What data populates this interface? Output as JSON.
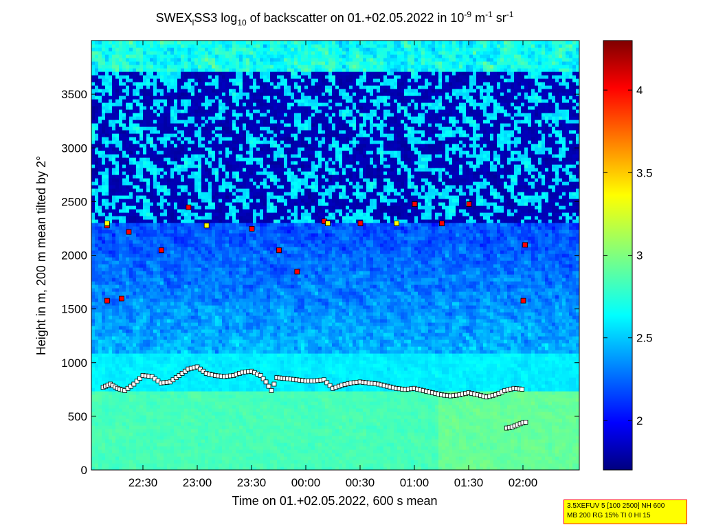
{
  "title": {
    "main": "SWEX",
    "sub1": "l",
    "part2": "SS3 log",
    "sub2": "10",
    "part3": " of backscatter on 01.+02.05.2022 in 10",
    "sup1": "-9",
    "part4": " m",
    "sup2": "-1",
    "part5": " sr",
    "sup3": "-1"
  },
  "info_box": {
    "line1": "3.5XEFUV 5 [100 2500] NH 600",
    "line2": "MB 200 RG 15% TI 0 HI 15"
  },
  "chart_data": {
    "type": "heatmap",
    "xlabel": "Time on 01.+02.05.2022, 600 s mean",
    "ylabel": "Height in m, 200 m mean tilted by 2°",
    "x_ticks": [
      "22:30",
      "23:00",
      "23:30",
      "00:00",
      "00:30",
      "01:00",
      "01:30",
      "02:00"
    ],
    "y_ticks": [
      0,
      500,
      1000,
      1500,
      2000,
      2500,
      3000,
      3500
    ],
    "ylim": [
      0,
      4000
    ],
    "colorbar": {
      "ticks": [
        2,
        2.5,
        3,
        3.5,
        4
      ],
      "range": [
        1.7,
        4.3
      ],
      "colormap": "jet"
    },
    "cloud_base_layers": [
      {
        "name": "layer-low",
        "points": [
          [
            "22:08",
            770
          ],
          [
            "22:12",
            800
          ],
          [
            "22:16",
            760
          ],
          [
            "22:20",
            740
          ],
          [
            "22:25",
            800
          ],
          [
            "22:30",
            880
          ],
          [
            "22:35",
            870
          ],
          [
            "22:40",
            810
          ],
          [
            "22:45",
            820
          ],
          [
            "22:50",
            880
          ],
          [
            "22:55",
            940
          ],
          [
            "23:00",
            960
          ],
          [
            "23:05",
            900
          ],
          [
            "23:10",
            880
          ],
          [
            "23:15",
            870
          ],
          [
            "23:20",
            880
          ],
          [
            "23:25",
            910
          ],
          [
            "23:30",
            920
          ],
          [
            "23:35",
            880
          ],
          [
            "23:38",
            820
          ],
          [
            "23:41",
            740
          ],
          [
            "23:44",
            860
          ],
          [
            "23:50",
            850
          ],
          [
            "23:55",
            840
          ],
          [
            "00:00",
            830
          ],
          [
            "00:05",
            830
          ],
          [
            "00:10",
            840
          ],
          [
            "00:15",
            760
          ],
          [
            "00:20",
            790
          ],
          [
            "00:25",
            810
          ],
          [
            "00:30",
            820
          ],
          [
            "00:35",
            810
          ],
          [
            "00:40",
            800
          ],
          [
            "00:45",
            780
          ],
          [
            "00:50",
            760
          ],
          [
            "00:55",
            750
          ],
          [
            "01:00",
            760
          ],
          [
            "01:05",
            740
          ],
          [
            "01:10",
            720
          ],
          [
            "01:15",
            700
          ],
          [
            "01:20",
            690
          ],
          [
            "01:25",
            700
          ],
          [
            "01:30",
            720
          ],
          [
            "01:35",
            700
          ],
          [
            "01:40",
            680
          ],
          [
            "01:45",
            700
          ],
          [
            "01:50",
            740
          ],
          [
            "01:55",
            760
          ],
          [
            "02:01",
            750
          ]
        ]
      },
      {
        "name": "layer-late-low",
        "points": [
          [
            "01:51",
            390
          ],
          [
            "01:54",
            400
          ],
          [
            "01:57",
            420
          ],
          [
            "02:00",
            440
          ],
          [
            "02:03",
            450
          ]
        ]
      }
    ],
    "sample_points": [
      {
        "time": "22:10",
        "height": 1580,
        "level": "red"
      },
      {
        "time": "22:18",
        "height": 1600,
        "level": "red"
      },
      {
        "time": "22:10",
        "height": 2280,
        "level": "red"
      },
      {
        "time": "22:10",
        "height": 2300,
        "level": "yellow"
      },
      {
        "time": "22:22",
        "height": 2220,
        "level": "red"
      },
      {
        "time": "22:40",
        "height": 2050,
        "level": "red"
      },
      {
        "time": "22:55",
        "height": 2450,
        "level": "red"
      },
      {
        "time": "23:05",
        "height": 2280,
        "level": "yellow"
      },
      {
        "time": "23:30",
        "height": 2250,
        "level": "red"
      },
      {
        "time": "23:45",
        "height": 2050,
        "level": "red"
      },
      {
        "time": "23:55",
        "height": 1850,
        "level": "red"
      },
      {
        "time": "00:10",
        "height": 2320,
        "level": "red"
      },
      {
        "time": "00:12",
        "height": 2300,
        "level": "yellow"
      },
      {
        "time": "00:30",
        "height": 2300,
        "level": "red"
      },
      {
        "time": "00:50",
        "height": 2300,
        "level": "yellow"
      },
      {
        "time": "01:00",
        "height": 2480,
        "level": "red"
      },
      {
        "time": "01:15",
        "height": 2300,
        "level": "red"
      },
      {
        "time": "01:30",
        "height": 2480,
        "level": "red"
      },
      {
        "time": "02:01",
        "height": 2100,
        "level": "red"
      },
      {
        "time": "02:00",
        "height": 1580,
        "level": "red"
      }
    ]
  }
}
